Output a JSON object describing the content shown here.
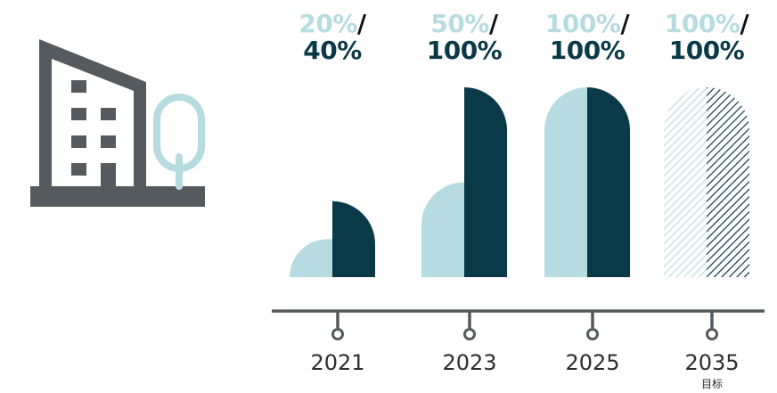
{
  "chart_data": {
    "type": "bar",
    "categories": [
      "2021",
      "2023",
      "2025",
      "2035"
    ],
    "series": [
      {
        "values": [
          20,
          50,
          100,
          100
        ]
      },
      {
        "values": [
          40,
          100,
          100,
          100
        ]
      }
    ],
    "ylim": [
      0,
      100
    ],
    "labels": [
      {
        "first": "20%",
        "second": "40%"
      },
      {
        "first": "50%",
        "second": "100%"
      },
      {
        "first": "100%",
        "second": "100%"
      },
      {
        "first": "100%",
        "second": "100%"
      }
    ],
    "year_notes": [
      "",
      "",
      "",
      "目标"
    ],
    "target_categories": [
      "2035"
    ],
    "colors": {
      "light": "#b6dbe0",
      "dark": "#0a3a48",
      "axis": "#555a5f",
      "icon": "#555a5f",
      "icon_accent": "#b6dbe0"
    }
  },
  "icons": [
    "building-icon",
    "tree-icon"
  ]
}
